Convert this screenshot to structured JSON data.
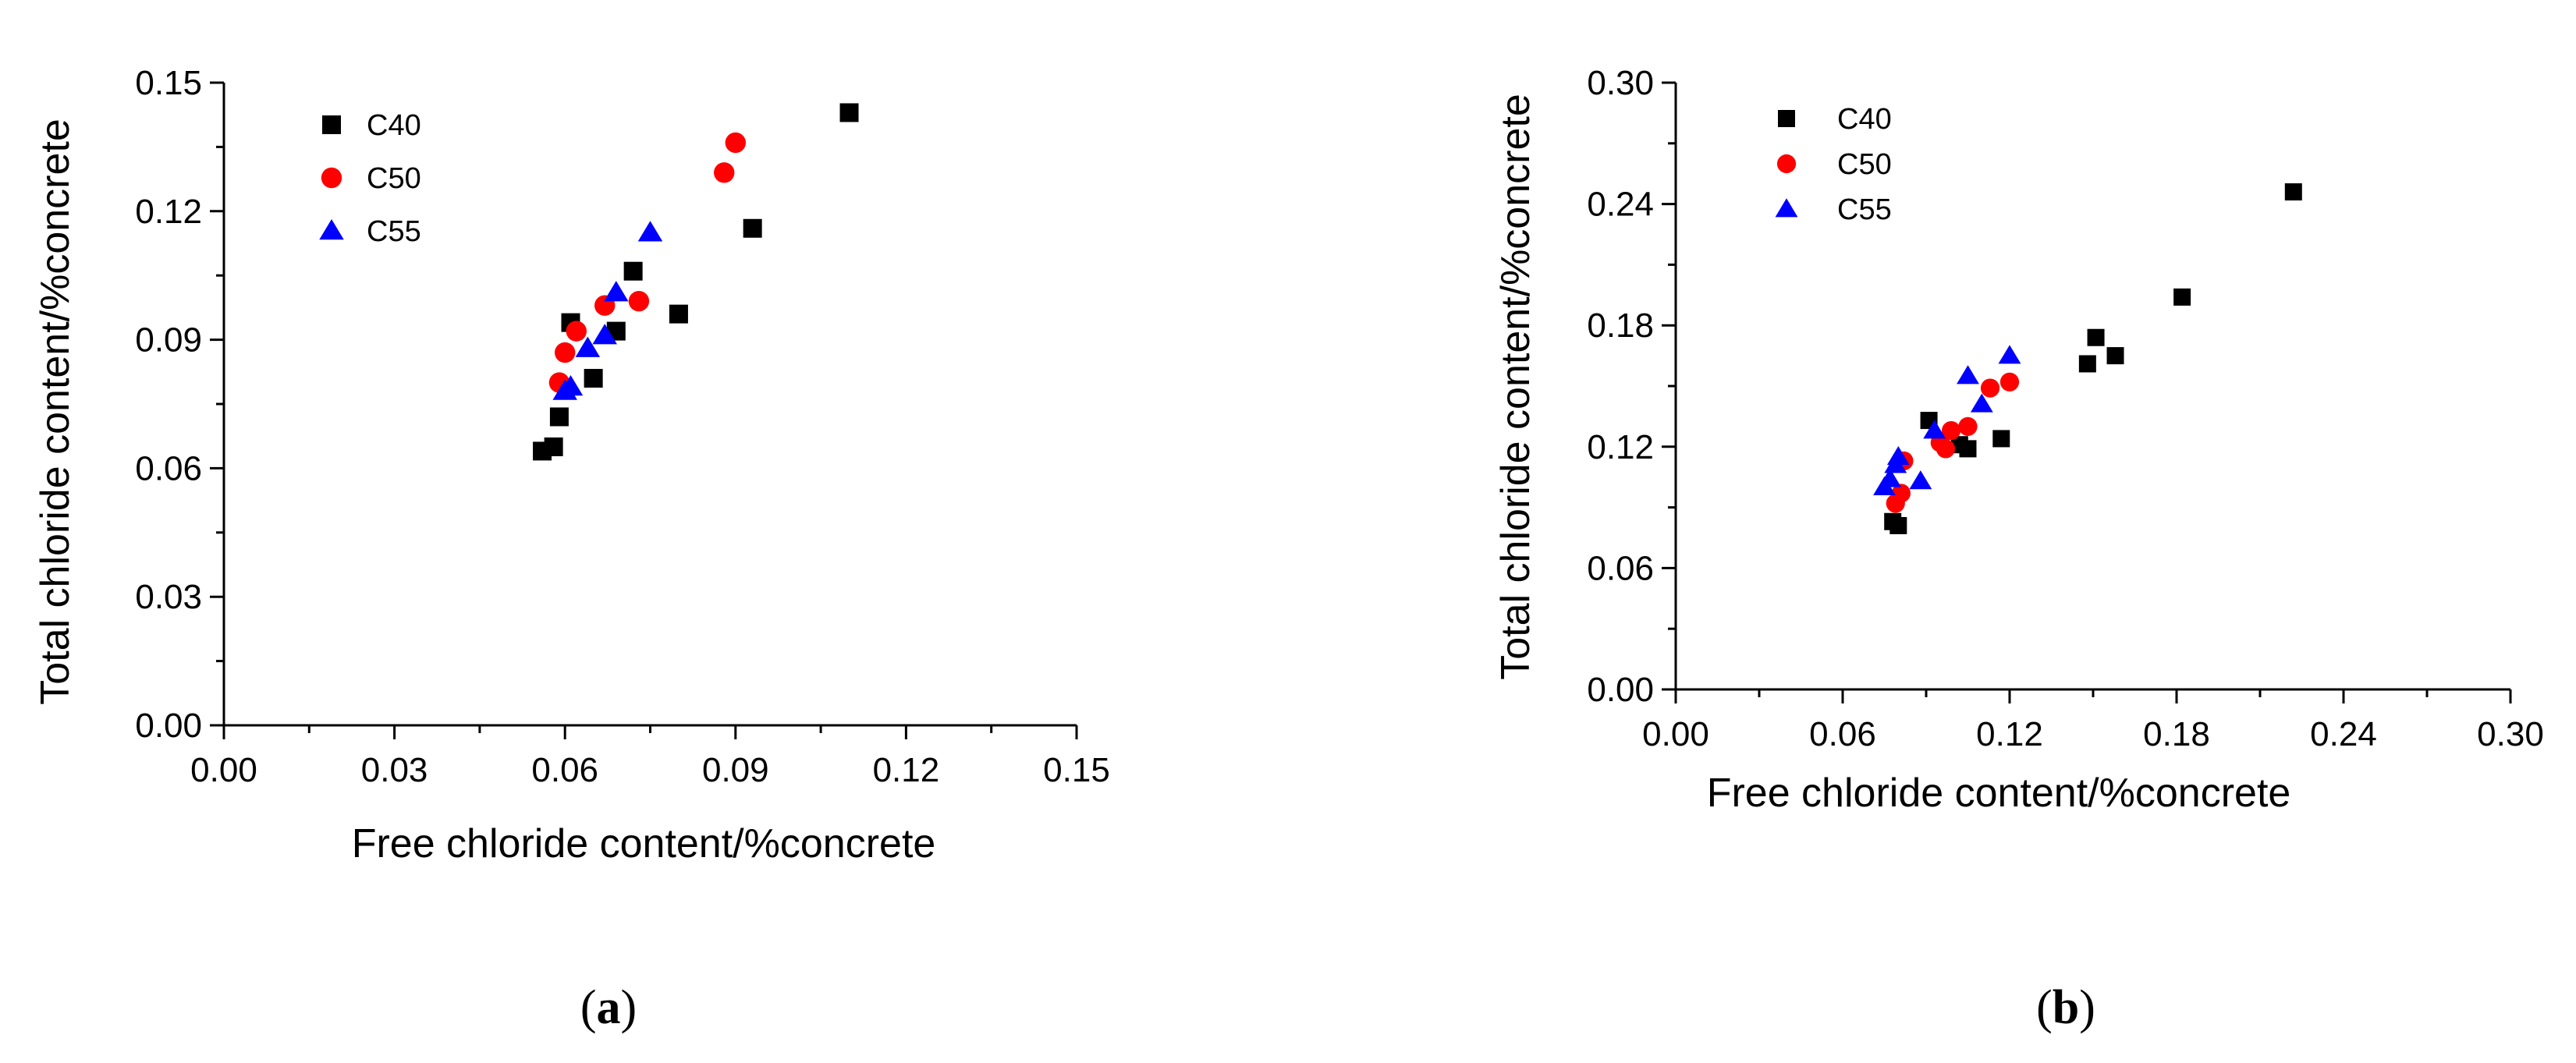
{
  "chart_data": [
    {
      "type": "scatter",
      "panel_label": {
        "open": "(",
        "letter": "a",
        "close": ")"
      },
      "xlabel": "Free chloride content/%concrete",
      "ylabel": "Total chloride content/%concrete",
      "xlim": [
        0,
        0.15
      ],
      "ylim": [
        0,
        0.15
      ],
      "xticks": [
        "0.00",
        "0.03",
        "0.06",
        "0.09",
        "0.12",
        "0.15"
      ],
      "yticks": [
        "0.00",
        "0.03",
        "0.06",
        "0.09",
        "0.12",
        "0.15"
      ],
      "legend_position": "top-left",
      "series": [
        {
          "name": "C40",
          "marker": "square",
          "color": "#000000",
          "points": [
            [
              0.056,
              0.064
            ],
            [
              0.058,
              0.065
            ],
            [
              0.059,
              0.072
            ],
            [
              0.061,
              0.094
            ],
            [
              0.065,
              0.081
            ],
            [
              0.069,
              0.092
            ],
            [
              0.072,
              0.106
            ],
            [
              0.08,
              0.096
            ],
            [
              0.093,
              0.116
            ],
            [
              0.11,
              0.143
            ]
          ]
        },
        {
          "name": "C50",
          "marker": "circle",
          "color": "#ff0000",
          "points": [
            [
              0.059,
              0.08
            ],
            [
              0.06,
              0.087
            ],
            [
              0.062,
              0.092
            ],
            [
              0.067,
              0.098
            ],
            [
              0.073,
              0.099
            ],
            [
              0.088,
              0.129
            ],
            [
              0.09,
              0.136
            ]
          ]
        },
        {
          "name": "C55",
          "marker": "triangle",
          "color": "#0000ff",
          "points": [
            [
              0.06,
              0.078
            ],
            [
              0.061,
              0.079
            ],
            [
              0.064,
              0.088
            ],
            [
              0.067,
              0.091
            ],
            [
              0.069,
              0.101
            ],
            [
              0.075,
              0.115
            ]
          ]
        }
      ]
    },
    {
      "type": "scatter",
      "panel_label": {
        "open": "(",
        "letter": "b",
        "close": ")"
      },
      "xlabel": "Free chloride content/%concrete",
      "ylabel": "Total chloride content/%concrete",
      "xlim": [
        0,
        0.3
      ],
      "ylim": [
        0,
        0.3
      ],
      "xticks": [
        "0.00",
        "0.06",
        "0.12",
        "0.18",
        "0.24",
        "0.30"
      ],
      "yticks": [
        "0.00",
        "0.06",
        "0.12",
        "0.18",
        "0.24",
        "0.30"
      ],
      "legend_position": "top-left",
      "series": [
        {
          "name": "C40",
          "marker": "square",
          "color": "#000000",
          "points": [
            [
              0.078,
              0.083
            ],
            [
              0.08,
              0.081
            ],
            [
              0.091,
              0.133
            ],
            [
              0.102,
              0.121
            ],
            [
              0.105,
              0.119
            ],
            [
              0.117,
              0.124
            ],
            [
              0.148,
              0.161
            ],
            [
              0.151,
              0.174
            ],
            [
              0.158,
              0.165
            ],
            [
              0.182,
              0.194
            ],
            [
              0.222,
              0.246
            ]
          ]
        },
        {
          "name": "C50",
          "marker": "circle",
          "color": "#ff0000",
          "points": [
            [
              0.079,
              0.092
            ],
            [
              0.081,
              0.097
            ],
            [
              0.082,
              0.113
            ],
            [
              0.095,
              0.122
            ],
            [
              0.097,
              0.119
            ],
            [
              0.099,
              0.128
            ],
            [
              0.105,
              0.13
            ],
            [
              0.113,
              0.149
            ],
            [
              0.12,
              0.152
            ]
          ]
        },
        {
          "name": "C55",
          "marker": "triangle",
          "color": "#0000ff",
          "points": [
            [
              0.075,
              0.1
            ],
            [
              0.077,
              0.104
            ],
            [
              0.079,
              0.111
            ],
            [
              0.08,
              0.115
            ],
            [
              0.088,
              0.103
            ],
            [
              0.093,
              0.128
            ],
            [
              0.105,
              0.155
            ],
            [
              0.11,
              0.141
            ],
            [
              0.12,
              0.165
            ]
          ]
        }
      ]
    }
  ]
}
